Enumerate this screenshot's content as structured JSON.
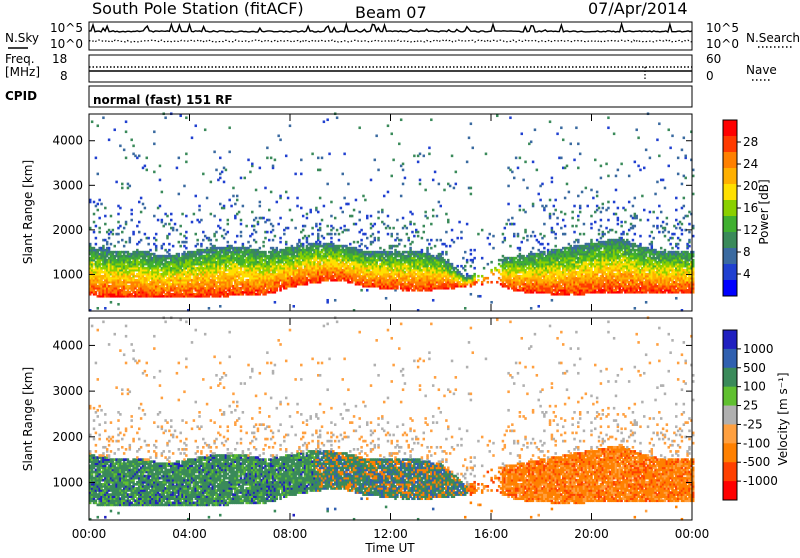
{
  "header": {
    "station": "South Pole Station (fitACF)",
    "beam": "Beam 07",
    "date": "07/Apr/2014"
  },
  "status_panels": {
    "nsky_label": "N.Sky",
    "nsearch_label": "N.Search",
    "log_ticks": [
      "10^5",
      "10^0"
    ],
    "freq_label": "Freq.",
    "freq_unit": "[MHz]",
    "freq_ticks": [
      "18",
      "8"
    ],
    "nave_label": "Nave",
    "nave_ticks": [
      "60",
      "0"
    ],
    "cpid_label": "CPID",
    "cpid_value": "normal (fast) 151 RF"
  },
  "chart_data": [
    {
      "type": "heatmap",
      "name": "power",
      "ylabel": "Slant Range [km]",
      "yticks": [
        1000,
        2000,
        3000,
        4000
      ],
      "xticks": [
        "00:00",
        "04:00",
        "08:00",
        "12:00",
        "16:00",
        "20:00",
        "00:00"
      ],
      "colorbar": {
        "label": "Power [dB]",
        "ticks": [
          "28",
          "24",
          "20",
          "16",
          "12",
          "8",
          "4"
        ],
        "colors": [
          "#ff0000",
          "#ff3a00",
          "#ff8000",
          "#ffb000",
          "#ffe000",
          "#8ad000",
          "#40b030",
          "#3a8a5a",
          "#3a6aa0",
          "#2040d0",
          "#0000ff"
        ]
      },
      "echo_band_profile_km": {
        "hours": [
          0,
          1,
          2,
          3,
          4,
          5,
          6,
          7,
          8,
          9,
          10,
          11,
          12,
          13,
          14,
          15,
          16,
          17,
          18,
          19,
          20,
          21,
          22,
          23,
          24
        ],
        "lower": [
          500,
          480,
          470,
          460,
          480,
          490,
          500,
          520,
          700,
          800,
          850,
          700,
          650,
          600,
          650,
          700,
          800,
          600,
          550,
          520,
          550,
          560,
          560,
          580,
          560
        ],
        "upper": [
          1600,
          1500,
          1500,
          1400,
          1500,
          1600,
          1600,
          1500,
          1600,
          1700,
          1650,
          1500,
          1500,
          1500,
          1400,
          900,
          1300,
          1400,
          1500,
          1600,
          1700,
          1800,
          1600,
          1500,
          1500
        ]
      }
    },
    {
      "type": "heatmap",
      "name": "velocity",
      "ylabel": "Slant Range [km]",
      "yticks": [
        1000,
        2000,
        3000,
        4000
      ],
      "xticks": [
        "00:00",
        "04:00",
        "08:00",
        "12:00",
        "16:00",
        "20:00",
        "00:00"
      ],
      "xlabel": "Time UT",
      "colorbar": {
        "label": "Velocity [m s⁻¹]",
        "ticks": [
          "1000",
          "500",
          "100",
          "25",
          "-25",
          "-100",
          "-500",
          "-1000"
        ],
        "colors": [
          "#2020c0",
          "#3060b0",
          "#3a8a5a",
          "#60c030",
          "#b0b0b0",
          "#ffa040",
          "#ff8000",
          "#ff4000",
          "#ff0000"
        ]
      }
    }
  ],
  "colors": {
    "axis": "#000000",
    "ground": "#9a9a9a"
  }
}
